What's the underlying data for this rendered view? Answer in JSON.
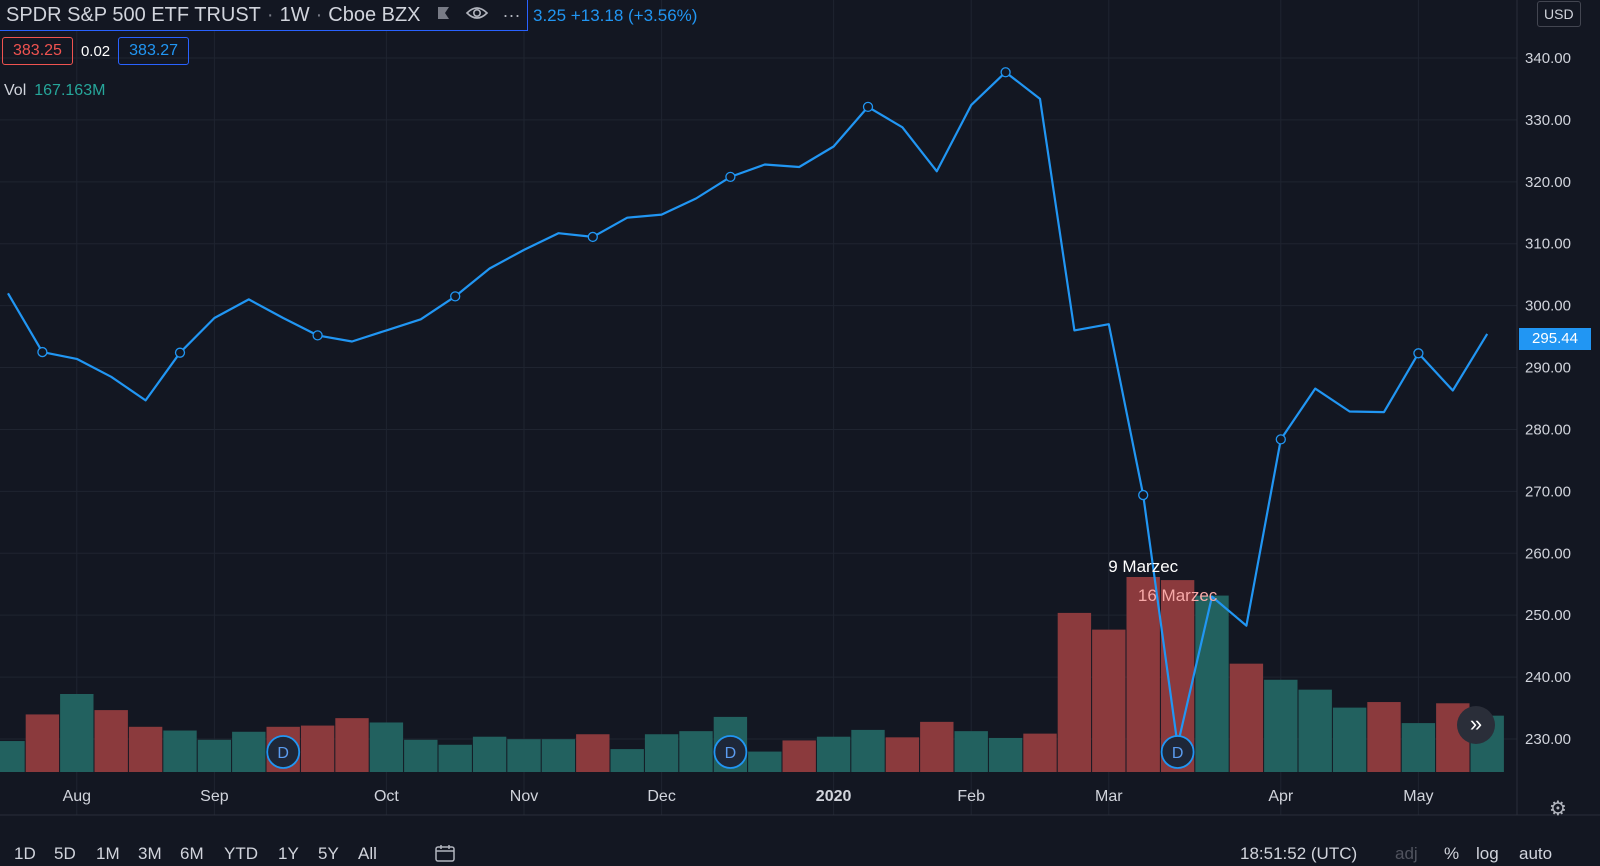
{
  "legend": {
    "symbol": "SPDR S&P 500 ETF TRUST",
    "interval": "1W",
    "exchange": "Cboe BZX",
    "price_change": "3.25 +13.18 (+3.56%)",
    "bid": "383.25",
    "spread": "0.02",
    "ask": "383.27",
    "volume_label": "Vol",
    "volume_value": "167.163M"
  },
  "currency": "USD",
  "last_price_label": "295.44",
  "bottom_bar": {
    "timeframes": [
      "1D",
      "5D",
      "1M",
      "3M",
      "6M",
      "YTD",
      "1Y",
      "5Y",
      "All"
    ],
    "clock": "18:51:52 (UTC)",
    "options": [
      "adj",
      "%",
      "log",
      "auto"
    ]
  },
  "colors": {
    "background": "#131722",
    "line": "#2196f3",
    "volume_up": "#22615f",
    "volume_down": "#8b3a3d",
    "grid": "#1f2430",
    "axis_text": "#d1d4dc"
  },
  "chart_data": {
    "type": "line",
    "y_ticks": [
      "340.00",
      "330.00",
      "320.00",
      "310.00",
      "300.00",
      "290.00",
      "280.00",
      "270.00",
      "260.00",
      "250.00",
      "240.00",
      "230.00"
    ],
    "ylim": [
      224.5,
      346
    ],
    "x_labels": [
      "Aug",
      "Sep",
      "Oct",
      "Nov",
      "Dec",
      "2020",
      "Feb",
      "Mar",
      "Apr",
      "May"
    ],
    "x_label_week_index": [
      2,
      6,
      11,
      15,
      19,
      24,
      28,
      32,
      37,
      41
    ],
    "series": [
      {
        "values": [
          302,
          292.5,
          291.4,
          288.5,
          284.7,
          292.4,
          298,
          301,
          298,
          295.2,
          294.2,
          296,
          297.8,
          301.5,
          306,
          309,
          311.7,
          311.1,
          314.2,
          314.7,
          317.3,
          320.8,
          322.8,
          322.4,
          325.7,
          332.1,
          328.8,
          321.7,
          332.4,
          337.7,
          333.4,
          296,
          297,
          269.4,
          229,
          253,
          248.3,
          278.4,
          286.6,
          282.9,
          282.8,
          292.3,
          286.3,
          295.44
        ],
        "markers_at": [
          1,
          5,
          9,
          13,
          17,
          21,
          25,
          29,
          33,
          34,
          37,
          41
        ]
      }
    ],
    "volume": {
      "values": [
        5,
        9.3,
        12.6,
        10,
        7.3,
        6.7,
        5.2,
        6.5,
        7.3,
        7.5,
        8.7,
        8,
        5.2,
        4.4,
        5.7,
        5.3,
        5.3,
        6.1,
        3.7,
        6.1,
        6.6,
        8.9,
        3.3,
        5.1,
        5.7,
        6.8,
        5.6,
        8.1,
        6.6,
        5.5,
        6.2,
        25.7,
        23,
        31.5,
        31,
        28.5,
        17.5,
        14.9,
        13.3,
        10.4,
        11.3,
        7.9,
        11.1,
        9.1
      ],
      "direction": [
        "up",
        "down",
        "up",
        "down",
        "down",
        "up",
        "up",
        "up",
        "down",
        "down",
        "down",
        "up",
        "up",
        "up",
        "up",
        "up",
        "up",
        "down",
        "up",
        "up",
        "up",
        "up",
        "up",
        "down",
        "up",
        "up",
        "down",
        "down",
        "up",
        "up",
        "down",
        "down",
        "down",
        "down",
        "down",
        "up",
        "down",
        "up",
        "up",
        "up",
        "down",
        "up",
        "down",
        "up"
      ]
    },
    "dividend_markers": [
      {
        "week": 8,
        "label": "D"
      },
      {
        "week": 21,
        "label": "D"
      },
      {
        "week": 34,
        "label": "D"
      }
    ],
    "annotations": [
      {
        "week": 33,
        "label": "9 Marzec"
      },
      {
        "week": 34,
        "label": "16 Marzec"
      }
    ]
  }
}
